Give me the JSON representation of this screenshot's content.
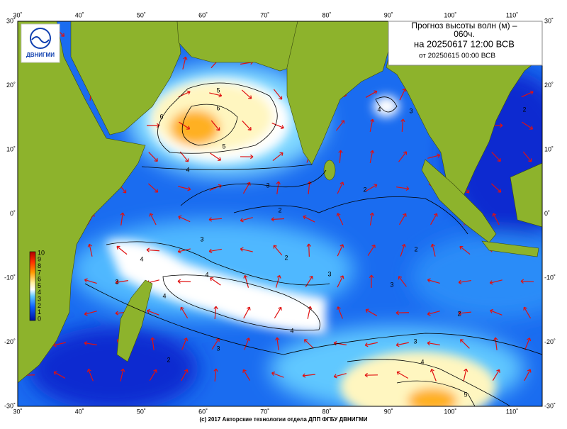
{
  "header": {
    "title": "Прогноз высоты волн (м) –",
    "lead": "060ч.",
    "valid": "на 20250617 12:00 ВСВ",
    "base": "от 20250615 00:00 ВСВ"
  },
  "logo": "ДВНИГМИ",
  "lon_labels": [
    "30˚",
    "40˚",
    "50˚",
    "60˚",
    "70˚",
    "80˚",
    "90˚",
    "100˚",
    "110˚"
  ],
  "lat_labels": [
    "30˚",
    "20˚",
    "10˚",
    "0˚",
    "-10˚",
    "-20˚",
    "-30˚"
  ],
  "colorbar": [
    "10",
    "9",
    "8",
    "7",
    "6",
    "5",
    "4",
    "3",
    "2",
    "1",
    "0"
  ],
  "contour_labels": [
    "5",
    "6",
    "6",
    "5",
    "4",
    "3",
    "2",
    "2",
    "3",
    "2",
    "2",
    "4",
    "4",
    "3",
    "3",
    "3",
    "4",
    "2",
    "4",
    "3",
    "3",
    "2",
    "4",
    "5",
    "4",
    "3",
    "2"
  ],
  "footer": "(c) 2017 Авторские технологии отдела ДПП ФГБУ ДВНИГМИ"
}
